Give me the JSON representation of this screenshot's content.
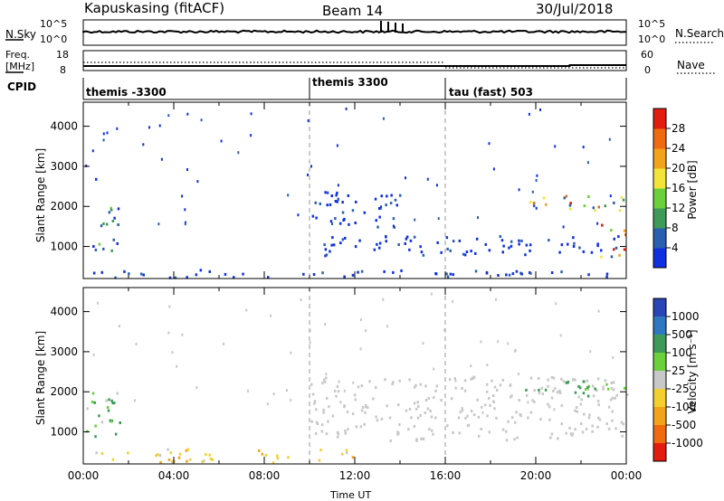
{
  "header": {
    "station": "Kapuskasing (fitACF)",
    "beam": "Beam 14",
    "date": "30/Jul/2018"
  },
  "noise_panel": {
    "left_label": "N.Sky",
    "left_ticks": [
      "10^5",
      "10^0"
    ],
    "right_label": "N.Search",
    "right_ticks": [
      "10^5",
      "10^0"
    ]
  },
  "freq_panel": {
    "left_label_1": "Freq.",
    "left_label_2": "[MHz]",
    "left_ticks": [
      "18",
      "8"
    ],
    "right_label": "Nave",
    "right_ticks": [
      "60",
      "0"
    ]
  },
  "cpid": {
    "label": "CPID",
    "segments": [
      {
        "name": "themis -3300",
        "start_hour": 0
      },
      {
        "name": "themis 3300",
        "start_hour": 10
      },
      {
        "name": "tau (fast) 503",
        "start_hour": 16
      }
    ]
  },
  "colors": {
    "power_scale": [
      "#1030e0",
      "#2a5fb0",
      "#3f9a5a",
      "#6ccf3c",
      "#f3e43a",
      "#f2a31c",
      "#f06a10",
      "#e21d0f"
    ],
    "velocity_scale": [
      "#2a45b5",
      "#2f78c0",
      "#3f9a5a",
      "#6ccf3c",
      "#c8c8c8",
      "#f3d030",
      "#f2a31c",
      "#f06a10",
      "#e21d0f"
    ],
    "grid_dash": "#9a9a9a"
  },
  "chart_data": [
    {
      "type": "heatmap",
      "title": "",
      "xlabel": "",
      "ylabel": "Slant Range [km]",
      "xlim": [
        "00:00",
        "24:00"
      ],
      "ylim": [
        200,
        4600
      ],
      "yticks": [
        1000,
        2000,
        3000,
        4000
      ],
      "colorbar_label": "Power [dB]",
      "colorbar_ticks": [
        "4",
        "8",
        "12",
        "16",
        "20",
        "24",
        "28"
      ],
      "echo_regions": [
        {
          "t0": 0.1,
          "t1": 1.6,
          "r0": 900,
          "r1": 2000,
          "level": "mid"
        },
        {
          "t0": 0.3,
          "t1": 0.8,
          "r0": 2550,
          "r1": 2800,
          "level": "low"
        },
        {
          "t0": 0.0,
          "t1": 24.0,
          "r0": 250,
          "r1": 450,
          "level": "low"
        },
        {
          "t0": 10.0,
          "t1": 14.0,
          "r0": 1500,
          "r1": 2400,
          "level": "low"
        },
        {
          "t0": 10.5,
          "t1": 24.0,
          "r0": 800,
          "r1": 1300,
          "level": "low"
        },
        {
          "t0": 19.5,
          "t1": 24.0,
          "r0": 1900,
          "r1": 2300,
          "level": "high"
        },
        {
          "t0": 22.5,
          "t1": 24.0,
          "r0": 700,
          "r1": 1600,
          "level": "high"
        }
      ]
    },
    {
      "type": "heatmap",
      "title": "",
      "xlabel": "Time UT",
      "ylabel": "Slant Range [km]",
      "xlim": [
        "00:00",
        "24:00"
      ],
      "ylim": [
        200,
        4600
      ],
      "yticks": [
        1000,
        2000,
        3000,
        4000
      ],
      "xticks": [
        "00:00",
        "04:00",
        "08:00",
        "12:00",
        "16:00",
        "20:00",
        "00:00"
      ],
      "colorbar_label": "Velocity [m s⁻¹]",
      "colorbar_ticks": [
        "1000",
        "500",
        "100",
        "25",
        "-25",
        "-100",
        "-500",
        "-1000"
      ],
      "echo_regions": [
        {
          "t0": 0.1,
          "t1": 1.6,
          "r0": 900,
          "r1": 2000,
          "level": "pos"
        },
        {
          "t0": 0.0,
          "t1": 12.0,
          "r0": 250,
          "r1": 600,
          "level": "neg"
        },
        {
          "t0": 10.0,
          "t1": 24.0,
          "r0": 800,
          "r1": 2400,
          "level": "zero"
        },
        {
          "t0": 19.5,
          "t1": 24.0,
          "r0": 1900,
          "r1": 2300,
          "level": "pos"
        }
      ]
    }
  ]
}
